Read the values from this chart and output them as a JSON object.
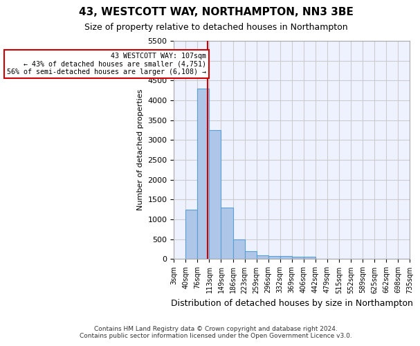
{
  "title1": "43, WESTCOTT WAY, NORTHAMPTON, NN3 3BE",
  "title2": "Size of property relative to detached houses in Northampton",
  "xlabel": "Distribution of detached houses by size in Northampton",
  "ylabel": "Number of detached properties",
  "annotation_line1": "43 WESTCOTT WAY: 107sqm",
  "annotation_line2": "← 43% of detached houses are smaller (4,751)",
  "annotation_line3": "56% of semi-detached houses are larger (6,108) →",
  "property_size": 107,
  "bin_labels": [
    "3sqm",
    "40sqm",
    "76sqm",
    "113sqm",
    "149sqm",
    "186sqm",
    "223sqm",
    "259sqm",
    "296sqm",
    "332sqm",
    "369sqm",
    "406sqm",
    "442sqm",
    "479sqm",
    "515sqm",
    "552sqm",
    "589sqm",
    "625sqm",
    "662sqm",
    "698sqm",
    "735sqm"
  ],
  "bar_values": [
    0,
    1250,
    4300,
    3250,
    1300,
    500,
    200,
    100,
    75,
    75,
    60,
    60,
    0,
    0,
    0,
    0,
    0,
    0,
    0,
    0
  ],
  "bar_color": "#aec6e8",
  "bar_edge_color": "#5a9fd4",
  "vline_color": "#cc0000",
  "annotation_box_color": "#cc0000",
  "ylim": [
    0,
    5500
  ],
  "yticks": [
    0,
    500,
    1000,
    1500,
    2000,
    2500,
    3000,
    3500,
    4000,
    4500,
    5000,
    5500
  ],
  "grid_color": "#cccccc",
  "bg_color": "#eef2ff",
  "footer1": "Contains HM Land Registry data © Crown copyright and database right 2024.",
  "footer2": "Contains public sector information licensed under the Open Government Licence v3.0."
}
